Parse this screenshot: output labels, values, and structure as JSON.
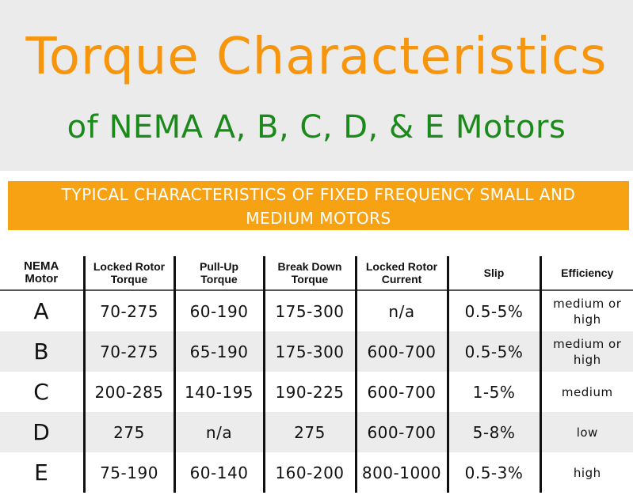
{
  "title": "Torque Characteristics",
  "subtitle": "of NEMA A, B, C, D, & E Motors",
  "banner": {
    "line1": "TYPICAL CHARACTERISTICS OF FIXED FREQUENCY SMALL AND",
    "line2": "MEDIUM  MOTORS"
  },
  "colors": {
    "title": "#f7960d",
    "subtitle": "#1b8a1b",
    "banner": "#f7a213"
  },
  "table": {
    "headers": [
      [
        "NEMA",
        "Motor"
      ],
      [
        "Locked Rotor",
        "Torque"
      ],
      [
        "Pull-Up",
        "Torque"
      ],
      [
        "Break Down",
        "Torque"
      ],
      [
        "Locked Rotor",
        "Current"
      ],
      [
        "Slip",
        ""
      ],
      [
        "Efficiency",
        ""
      ]
    ],
    "rows": [
      [
        "A",
        "70-275",
        "60-190",
        "175-300",
        "n/a",
        "0.5-5%",
        "medium or high"
      ],
      [
        "B",
        "70-275",
        "65-190",
        "175-300",
        "600-700",
        "0.5-5%",
        "medium or high"
      ],
      [
        "C",
        "200-285",
        "140-195",
        "190-225",
        "600-700",
        "1-5%",
        "medium"
      ],
      [
        "D",
        "275",
        "n/a",
        "275",
        "600-700",
        "5-8%",
        "low"
      ],
      [
        "E",
        "75-190",
        "60-140",
        "160-200",
        "800-1000",
        "0.5-3%",
        "high"
      ]
    ]
  }
}
